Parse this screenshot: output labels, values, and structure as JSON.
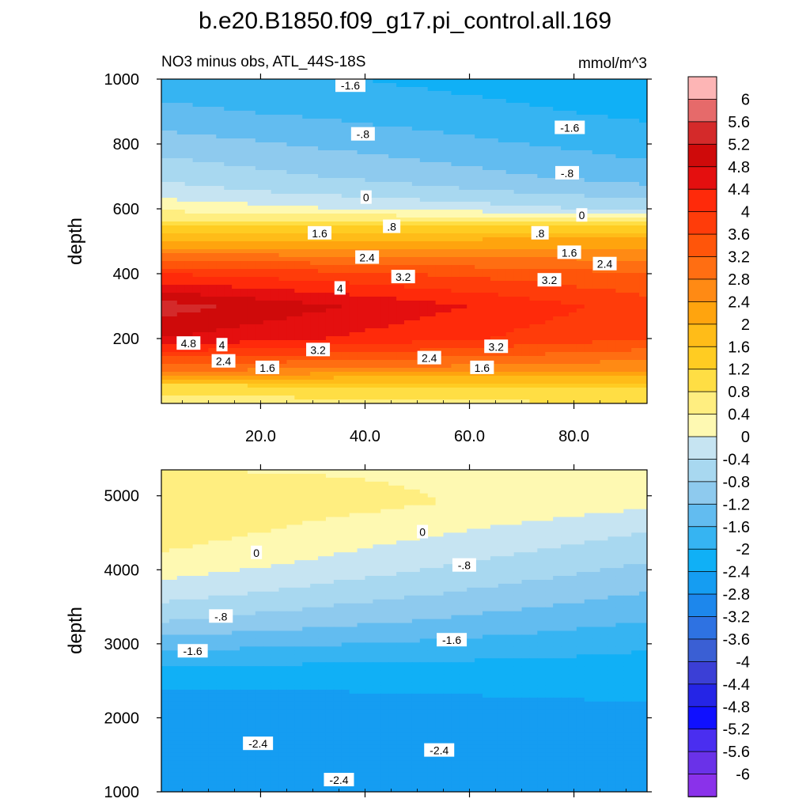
{
  "title": "b.e20.B1850.f09_g17.pi_control.all.169",
  "chart_data": [
    {
      "type": "heatmap",
      "panel": "upper",
      "subtitle_left": "NO3 minus obs, ATL_44S-18S",
      "subtitle_right": "mmol/m^3",
      "ylabel": "depth",
      "ylim": [
        1000,
        0
      ],
      "yticks": [
        "200",
        "400",
        "600",
        "800",
        "1000"
      ],
      "ytick_values": [
        200,
        400,
        600,
        800,
        1000
      ],
      "xlim": [
        1,
        94
      ],
      "xticks": [
        "20.0",
        "40.0",
        "60.0",
        "80.0"
      ],
      "xtick_values": [
        20,
        40,
        60,
        80
      ],
      "anomaly_profile": {
        "depth": [
          0,
          50,
          100,
          200,
          300,
          400,
          500,
          560,
          600,
          650,
          700,
          800,
          900,
          1000
        ],
        "value_x0": [
          0.6,
          1.0,
          2.8,
          4.8,
          5.4,
          4.0,
          2.0,
          0.9,
          0.3,
          -0.2,
          -0.5,
          -1.0,
          -1.5,
          -1.8
        ],
        "value_x94": [
          0.8,
          1.2,
          2.4,
          3.6,
          3.8,
          3.2,
          2.2,
          0.8,
          -0.5,
          -1.0,
          -1.4,
          -1.8,
          -2.1,
          -2.3
        ]
      },
      "contour_labels": [
        {
          "text": "2.4",
          "x": 12.9,
          "depth": 130
        },
        {
          "text": "1.6",
          "x": 21.3,
          "depth": 110
        },
        {
          "text": "4.8",
          "x": 6.2,
          "depth": 185
        },
        {
          "text": "4",
          "x": 12.6,
          "depth": 180
        },
        {
          "text": "3.2",
          "x": 31.0,
          "depth": 165
        },
        {
          "text": "2.4",
          "x": 52.3,
          "depth": 140
        },
        {
          "text": "1.6",
          "x": 62.4,
          "depth": 110
        },
        {
          "text": "3.2",
          "x": 65.1,
          "depth": 175
        },
        {
          "text": "4",
          "x": 35.2,
          "depth": 355
        },
        {
          "text": "3.2",
          "x": 47.3,
          "depth": 390
        },
        {
          "text": "2.4",
          "x": 40.4,
          "depth": 450
        },
        {
          "text": "1.6",
          "x": 31.3,
          "depth": 525
        },
        {
          "text": ".8",
          "x": 45.1,
          "depth": 545
        },
        {
          "text": "3.2",
          "x": 75.3,
          "depth": 380
        },
        {
          "text": "2.4",
          "x": 85.9,
          "depth": 430
        },
        {
          "text": "1.6",
          "x": 79.1,
          "depth": 465
        },
        {
          "text": ".8",
          "x": 73.5,
          "depth": 525
        },
        {
          "text": "0",
          "x": 81.5,
          "depth": 580
        },
        {
          "text": "0",
          "x": 40.2,
          "depth": 635
        },
        {
          "text": "-.8",
          "x": 78.7,
          "depth": 710
        },
        {
          "text": "-.8",
          "x": 39.6,
          "depth": 830
        },
        {
          "text": "-1.6",
          "x": 79.2,
          "depth": 850
        },
        {
          "text": "-1.6",
          "x": 37.2,
          "depth": 980
        }
      ]
    },
    {
      "type": "heatmap",
      "panel": "lower",
      "ylabel": "depth",
      "ylim": [
        5350,
        1000
      ],
      "yticks": [
        "1000",
        "2000",
        "3000",
        "4000",
        "5000"
      ],
      "ytick_values": [
        1000,
        2000,
        3000,
        4000,
        5000
      ],
      "xlim": [
        1,
        94
      ],
      "xtick_values": [
        20,
        40,
        60,
        80
      ],
      "anomaly_profile": {
        "depth": [
          1000,
          1200,
          1500,
          1800,
          2200,
          2600,
          2900,
          3300,
          3700,
          4100,
          4500,
          4900,
          5350
        ],
        "value_x0": [
          -2.7,
          -2.5,
          -2.5,
          -2.7,
          -2.6,
          -2.2,
          -1.6,
          -0.8,
          -0.2,
          0.3,
          0.6,
          0.8,
          0.4
        ],
        "value_x94": [
          -2.8,
          -2.7,
          -2.6,
          -2.5,
          -2.4,
          -2.2,
          -2.0,
          -1.6,
          -1.2,
          -0.8,
          -0.4,
          0.1,
          0.3
        ]
      },
      "contour_labels": [
        {
          "text": "-2.4",
          "x": 35.0,
          "depth": 1160
        },
        {
          "text": "-2.4",
          "x": 19.5,
          "depth": 1650
        },
        {
          "text": "-2.4",
          "x": 54.2,
          "depth": 1560
        },
        {
          "text": "-1.6",
          "x": 7.0,
          "depth": 2900
        },
        {
          "text": "-1.6",
          "x": 56.6,
          "depth": 3050
        },
        {
          "text": "-.8",
          "x": 12.4,
          "depth": 3370
        },
        {
          "text": "-.8",
          "x": 59.0,
          "depth": 4060
        },
        {
          "text": "0",
          "x": 19.2,
          "depth": 4230
        },
        {
          "text": "0",
          "x": 51.0,
          "depth": 4510
        }
      ]
    }
  ],
  "colorbar": {
    "labels": [
      "6",
      "5.6",
      "5.2",
      "4.8",
      "4.4",
      "4",
      "3.6",
      "3.2",
      "2.8",
      "2.4",
      "2",
      "1.6",
      "1.2",
      "0.8",
      "0.4",
      "0",
      "-0.4",
      "-0.8",
      "-1.2",
      "-1.6",
      "-2",
      "-2.4",
      "-2.8",
      "-3.2",
      "-3.6",
      "-4",
      "-4.4",
      "-4.8",
      "-5.2",
      "-5.6",
      "-6"
    ],
    "colors_top_to_bottom": [
      "#fdb5b5",
      "#e66a6a",
      "#d42a2a",
      "#cf0a0a",
      "#e40f0f",
      "#ff2a0a",
      "#ff3c0a",
      "#ff550a",
      "#ff6e12",
      "#ff8a14",
      "#ffa40e",
      "#ffbc18",
      "#ffcc22",
      "#ffde44",
      "#ffee80",
      "#fef9b2",
      "#c6e4f2",
      "#a8d8f0",
      "#8ecaee",
      "#62bcf0",
      "#36b4f2",
      "#10b0f6",
      "#159df2",
      "#1d87ec",
      "#2e72e2",
      "#3a5fd4",
      "#3b3fd6",
      "#2525e6",
      "#1010ff",
      "#4a2ef0",
      "#6a32e8",
      "#8a32ea"
    ]
  }
}
